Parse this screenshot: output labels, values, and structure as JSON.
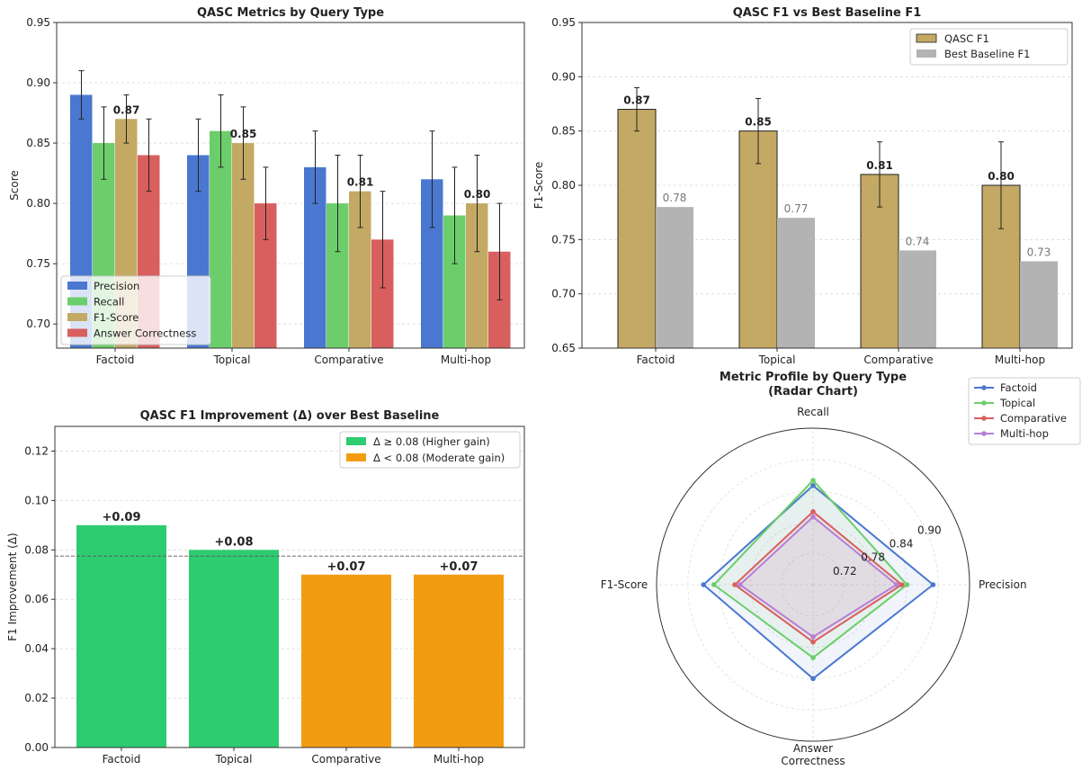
{
  "chart_data": [
    {
      "type": "bar",
      "title": "QASC Metrics by Query Type",
      "xlabel": "",
      "ylabel": "Score",
      "ylim": [
        0.68,
        0.95
      ],
      "yticks": [
        "0.70",
        "0.75",
        "0.80",
        "0.85",
        "0.90",
        "0.95"
      ],
      "grid": true,
      "legend_position": "lower-left",
      "categories": [
        "Factoid",
        "Topical",
        "Comparative",
        "Multi-hop"
      ],
      "series": [
        {
          "name": "Precision",
          "color": "#4a78d0",
          "values": [
            0.89,
            0.84,
            0.83,
            0.82
          ],
          "errors": [
            0.02,
            0.03,
            0.03,
            0.04
          ]
        },
        {
          "name": "Recall",
          "color": "#6cce6a",
          "values": [
            0.85,
            0.86,
            0.8,
            0.79
          ],
          "errors": [
            0.03,
            0.03,
            0.04,
            0.04
          ]
        },
        {
          "name": "F1-Score",
          "color": "#c4a964",
          "values": [
            0.87,
            0.85,
            0.81,
            0.8
          ],
          "errors": [
            0.02,
            0.03,
            0.03,
            0.04
          ]
        },
        {
          "name": "Answer Correctness",
          "color": "#d95f5f",
          "values": [
            0.84,
            0.8,
            0.77,
            0.76
          ],
          "errors": [
            0.03,
            0.03,
            0.04,
            0.04
          ]
        }
      ],
      "annotations": [
        "0.87",
        "0.85",
        "0.81",
        "0.80"
      ]
    },
    {
      "type": "bar",
      "title": "QASC F1 vs Best Baseline F1",
      "xlabel": "",
      "ylabel": "F1-Score",
      "ylim": [
        0.65,
        0.95
      ],
      "yticks": [
        "0.65",
        "0.70",
        "0.75",
        "0.80",
        "0.85",
        "0.90",
        "0.95"
      ],
      "grid": true,
      "legend_position": "top-right",
      "categories": [
        "Factoid",
        "Topical",
        "Comparative",
        "Multi-hop"
      ],
      "series": [
        {
          "name": "QASC F1",
          "color": "#c4a964",
          "values": [
            0.87,
            0.85,
            0.81,
            0.8
          ],
          "errors": [
            0.02,
            0.03,
            0.03,
            0.04
          ],
          "labels": [
            "0.87",
            "0.85",
            "0.81",
            "0.80"
          ]
        },
        {
          "name": "Best Baseline F1",
          "color": "#b3b3b3",
          "values": [
            0.78,
            0.77,
            0.74,
            0.73
          ],
          "labels": [
            "0.78",
            "0.77",
            "0.74",
            "0.73"
          ]
        }
      ]
    },
    {
      "type": "bar",
      "title": "QASC F1 Improvement (Δ) over Best Baseline",
      "xlabel": "",
      "ylabel": "F1 Improvement (Δ)",
      "ylim": [
        0,
        0.13
      ],
      "yticks": [
        "0.00",
        "0.02",
        "0.04",
        "0.06",
        "0.08",
        "0.10",
        "0.12"
      ],
      "grid": true,
      "legend_position": "top-right",
      "categories": [
        "Factoid",
        "Topical",
        "Comparative",
        "Multi-hop"
      ],
      "values": [
        0.09,
        0.08,
        0.07,
        0.07
      ],
      "labels": [
        "+0.09",
        "+0.08",
        "+0.07",
        "+0.07"
      ],
      "colors": [
        "#2ecc71",
        "#2ecc71",
        "#f39c12",
        "#f39c12"
      ],
      "reference_line": 0.0775,
      "legend": [
        {
          "name": "Δ ≥ 0.08 (Higher gain)",
          "color": "#2ecc71"
        },
        {
          "name": "Δ < 0.08 (Moderate gain)",
          "color": "#f39c12"
        }
      ]
    },
    {
      "type": "radar",
      "title": "Metric Profile by Query Type",
      "subtitle": "(Radar Chart)",
      "axes": [
        "Precision",
        "Recall",
        "F1-Score",
        "Answer Correctness"
      ],
      "axis_label_lines": [
        [
          "Precision"
        ],
        [
          "Recall"
        ],
        [
          "F1-Score"
        ],
        [
          "Answer",
          "Correctness"
        ]
      ],
      "r_min": 0.66,
      "r_max": 0.96,
      "rticks": [
        0.72,
        0.78,
        0.84,
        0.9
      ],
      "rtick_labels": [
        "0.72",
        "0.78",
        "0.84",
        "0.90"
      ],
      "legend_position": "top-right",
      "series": [
        {
          "name": "Factoid",
          "color": "#4a78d0",
          "values": [
            0.89,
            0.85,
            0.87,
            0.84
          ]
        },
        {
          "name": "Topical",
          "color": "#6cce6a",
          "values": [
            0.84,
            0.86,
            0.85,
            0.8
          ]
        },
        {
          "name": "Comparative",
          "color": "#d95f5f",
          "values": [
            0.83,
            0.8,
            0.81,
            0.77
          ]
        },
        {
          "name": "Multi-hop",
          "color": "#b57fd6",
          "values": [
            0.82,
            0.79,
            0.8,
            0.76
          ]
        }
      ]
    }
  ]
}
